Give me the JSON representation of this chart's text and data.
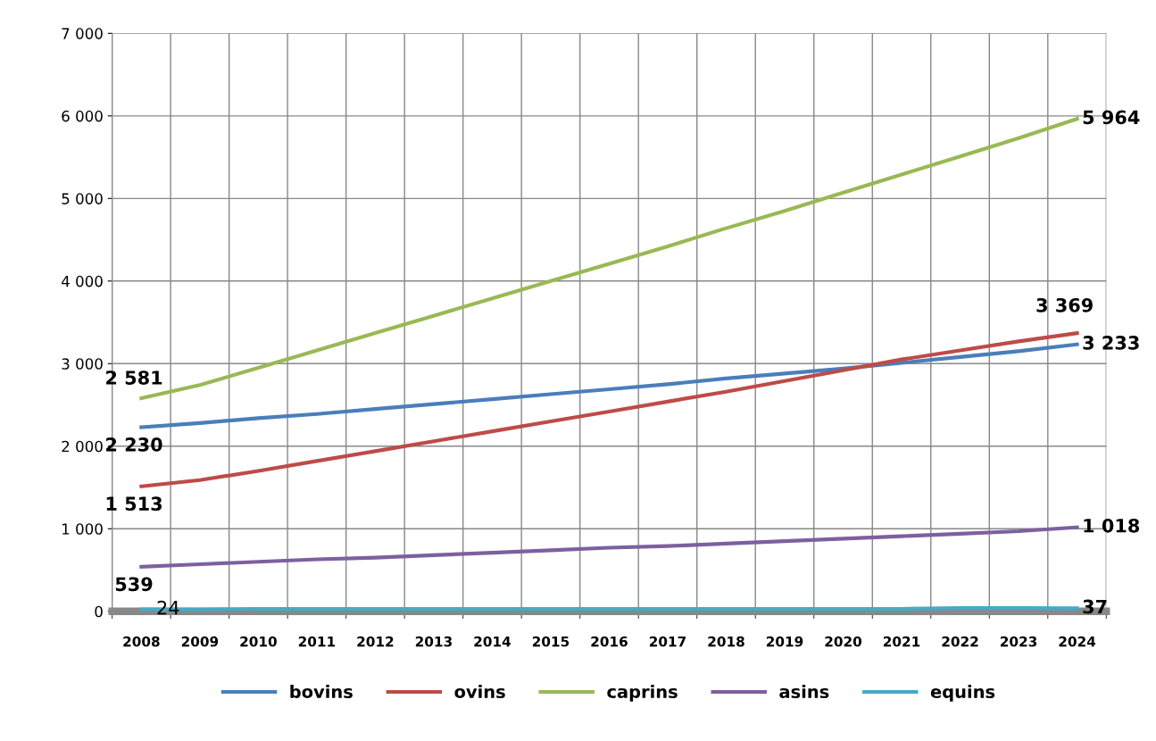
{
  "chart_data": {
    "type": "line",
    "categories": [
      "2008",
      "2009",
      "2010",
      "2011",
      "2012",
      "2013",
      "2014",
      "2015",
      "2016",
      "2017",
      "2018",
      "2019",
      "2020",
      "2021",
      "2022",
      "2023",
      "2024"
    ],
    "ylim": [
      0,
      7000
    ],
    "yticks": [
      {
        "value": 0,
        "label": "0"
      },
      {
        "value": 1000,
        "label": "1 000"
      },
      {
        "value": 2000,
        "label": "2 000"
      },
      {
        "value": 3000,
        "label": "3 000"
      },
      {
        "value": 4000,
        "label": "4 000"
      },
      {
        "value": 5000,
        "label": "5 000"
      },
      {
        "value": 6000,
        "label": "6 000"
      },
      {
        "value": 7000,
        "label": "7 000"
      }
    ],
    "grid": true,
    "legend": "bottom",
    "marker": "none",
    "line_style": "solid",
    "series": [
      {
        "name": "bovins",
        "color": "#4a7ebb",
        "values": [
          2230,
          2280,
          2340,
          2390,
          2450,
          2510,
          2570,
          2630,
          2690,
          2750,
          2820,
          2880,
          2940,
          3010,
          3080,
          3150,
          3233
        ],
        "value_labels": [
          "2 230",
          null,
          null,
          null,
          null,
          null,
          null,
          null,
          null,
          null,
          null,
          null,
          null,
          null,
          null,
          null,
          "3 233"
        ]
      },
      {
        "name": "ovins",
        "color": "#be4b48",
        "values": [
          1513,
          1590,
          1700,
          1820,
          1940,
          2060,
          2180,
          2300,
          2420,
          2540,
          2660,
          2790,
          2920,
          3050,
          3160,
          3270,
          3369
        ],
        "value_labels": [
          "1 513",
          null,
          null,
          null,
          null,
          null,
          null,
          null,
          null,
          null,
          null,
          null,
          null,
          null,
          null,
          null,
          "3 369"
        ]
      },
      {
        "name": "caprins",
        "color": "#98b954",
        "values": [
          2581,
          2740,
          2950,
          3160,
          3370,
          3580,
          3790,
          4000,
          4210,
          4420,
          4640,
          4850,
          5070,
          5290,
          5510,
          5730,
          5964
        ],
        "value_labels": [
          "2 581",
          null,
          null,
          null,
          null,
          null,
          null,
          null,
          null,
          null,
          null,
          null,
          null,
          null,
          null,
          null,
          "5 964"
        ]
      },
      {
        "name": "asins",
        "color": "#7d60a0",
        "values": [
          539,
          570,
          600,
          630,
          650,
          680,
          710,
          740,
          770,
          790,
          820,
          850,
          880,
          910,
          940,
          970,
          1018
        ],
        "value_labels": [
          "539",
          null,
          null,
          null,
          null,
          null,
          null,
          null,
          null,
          null,
          null,
          null,
          null,
          null,
          null,
          null,
          "1 018"
        ]
      },
      {
        "name": "equins",
        "color": "#46aac5",
        "values": [
          24,
          20,
          30,
          30,
          30,
          30,
          30,
          30,
          30,
          30,
          30,
          30,
          30,
          30,
          40,
          40,
          37
        ],
        "value_labels": [
          "24",
          null,
          null,
          null,
          null,
          null,
          null,
          null,
          null,
          null,
          null,
          null,
          null,
          null,
          null,
          null,
          "37"
        ]
      }
    ]
  }
}
